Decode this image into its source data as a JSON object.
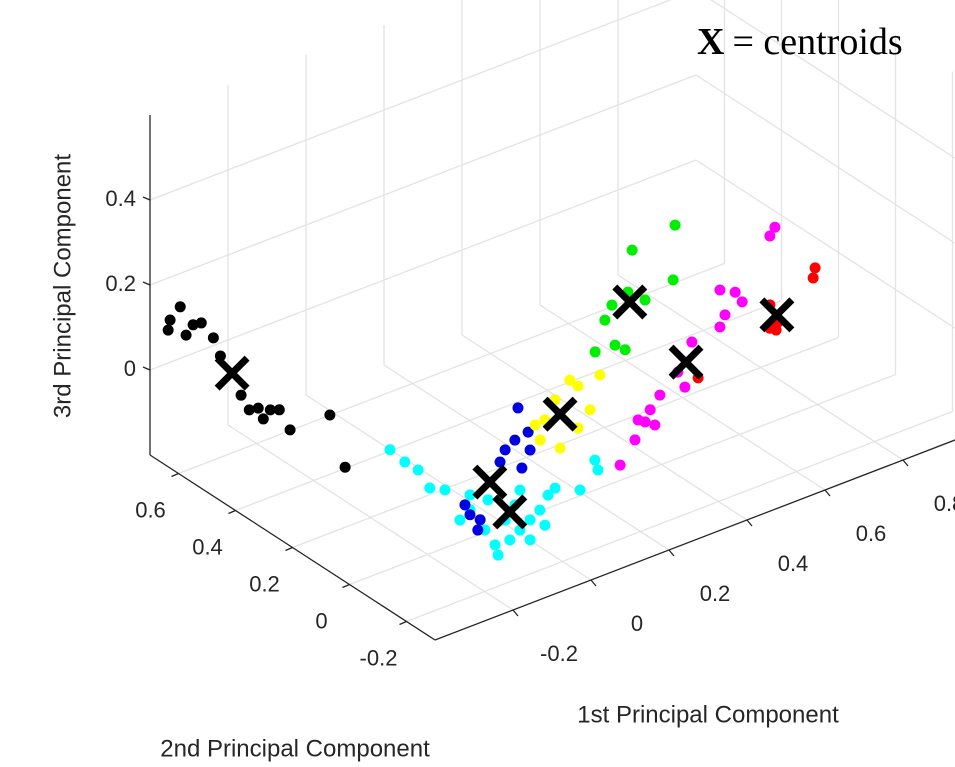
{
  "chart_data": {
    "type": "scatter3d",
    "annotation": {
      "marker": "X",
      "text": "= centroids"
    },
    "xlabel": "1st Principal Component",
    "ylabel": "2nd Principal Component",
    "zlabel": "3rd Principal Component",
    "xlim": [
      -0.4,
      1.0
    ],
    "ylim": [
      -0.3,
      0.7
    ],
    "zlim": [
      -0.2,
      0.6
    ],
    "xticks": [
      -0.2,
      0,
      0.2,
      0.4,
      0.6,
      0.8
    ],
    "yticks": [
      -0.2,
      0,
      0.2,
      0.4,
      0.6
    ],
    "zticks": [
      0,
      0.2,
      0.4
    ],
    "grid": true,
    "series": [
      {
        "color": "#000000",
        "x": [
          -0.385,
          -0.359,
          -0.39,
          -0.344,
          -0.326,
          -0.305,
          -0.274,
          -0.256,
          -0.203,
          -0.182,
          -0.159,
          -0.146,
          -0.128,
          -0.105,
          -0.187,
          -0.085,
          -0.192
        ],
        "y": [
          0.65,
          0.65,
          0.65,
          0.65,
          0.65,
          0.65,
          0.65,
          0.65,
          0.65,
          0.65,
          0.65,
          0.65,
          0.65,
          0.65,
          0.5,
          0.5,
          0.3
        ],
        "z": [
          0.134,
          0.156,
          0.112,
          0.084,
          0.102,
          0.099,
          0.053,
          0.004,
          -0.107,
          -0.149,
          -0.153,
          -0.183,
          -0.168,
          -0.176,
          -0.129,
          -0.13,
          -0.128
        ]
      },
      {
        "color": "#00ffff",
        "x": [
          -0.223,
          -0.185,
          -0.151,
          -0.121,
          -0.082,
          -0.19,
          -0.164,
          -0.126,
          -0.1,
          -0.092,
          -0.062,
          -0.036,
          -0.01,
          0.015,
          0.036,
          0.054,
          0.028,
          -0.074,
          -0.049,
          0.118,
          0.156,
          0.164,
          -0.164,
          -0.118,
          -0.01,
          -0.036
        ],
        "y": [
          0.1,
          0.1,
          0.1,
          0.1,
          0.1,
          -0.1,
          -0.1,
          -0.1,
          -0.1,
          -0.1,
          -0.1,
          -0.1,
          -0.1,
          -0.1,
          -0.1,
          -0.1,
          -0.1,
          -0.1,
          -0.1,
          -0.1,
          -0.1,
          -0.1,
          -0.1,
          -0.1,
          -0.1,
          -0.1
        ],
        "z": [
          0.011,
          -0.031,
          -0.062,
          -0.115,
          -0.133,
          -0.079,
          -0.064,
          -0.125,
          -0.169,
          -0.196,
          -0.171,
          -0.157,
          -0.142,
          -0.128,
          -0.1,
          -0.09,
          -0.168,
          -0.12,
          -0.093,
          -0.117,
          -0.06,
          -0.086,
          -0.029,
          -0.057,
          -0.189,
          -0.063
        ]
      },
      {
        "color": "#0000e0",
        "x": [
          -0.104,
          -0.091,
          -0.071,
          -0.014,
          -0.001,
          0.024,
          0.032,
          0.058,
          0.063,
          0.042,
          -0.065
        ],
        "y": [
          0,
          0,
          0,
          0,
          0,
          0,
          0,
          0,
          0,
          0,
          0
        ],
        "z": [
          -0.117,
          -0.145,
          -0.188,
          -0.048,
          -0.024,
          -0.01,
          0.063,
          -0.003,
          -0.047,
          -0.082,
          -0.166
        ]
      },
      {
        "color": "#ffff00",
        "x": [
          0.238,
          0.259,
          0.315,
          0.2,
          0.174,
          0.162,
          0.213,
          0.259,
          0.29,
          0.149
        ],
        "y": [
          0.1,
          0.1,
          0.1,
          0.1,
          0.1,
          0.1,
          0.1,
          0.1,
          0.1,
          0.1
        ],
        "z": [
          0.012,
          -0.009,
          -0.003,
          -0.021,
          -0.059,
          -0.102,
          -0.139,
          -0.108,
          -0.076,
          -0.062
        ]
      },
      {
        "color": "#00ee00",
        "x": [
          0.654,
          0.544,
          0.649,
          0.474,
          0.492,
          0.533,
          0.5,
          0.526,
          0.449,
          0.577
        ],
        "y": [
          0.3,
          0.3,
          0.3,
          0.3,
          0.3,
          0.3,
          0.3,
          0.3,
          0.3,
          0.3
        ],
        "z": [
          0.143,
          0.123,
          0.016,
          -0.017,
          0.012,
          0.028,
          -0.085,
          -0.105,
          -0.083,
          -0.006
        ]
      },
      {
        "color": "#ff00ff",
        "x": [
          0.824,
          0.837,
          0.696,
          0.735,
          0.753,
          0.709,
          0.696,
          0.624,
          0.588,
          0.542,
          0.371,
          0.358,
          0.383,
          0.34,
          0.332,
          0.294,
          0.46
        ],
        "y": [
          0.2,
          0.2,
          0.2,
          0.2,
          0.2,
          0.2,
          0.2,
          0.2,
          0.2,
          0.2,
          0,
          0,
          0,
          0,
          0,
          0,
          0
        ],
        "z": [
          0.101,
          0.117,
          0.019,
          0,
          -0.029,
          -0.044,
          -0.068,
          -0.078,
          -0.136,
          -0.174,
          -0.061,
          -0.085,
          -0.101,
          -0.074,
          -0.118,
          -0.164,
          -0.039
        ]
      },
      {
        "color": "#ff0000",
        "x": [
          0.94,
          0.935,
          0.824,
          0.845,
          0.824,
          0.84,
          0.64
        ],
        "y": [
          0.2,
          0.2,
          0.2,
          0.2,
          0.2,
          0.2,
          0.2
        ],
        "z": [
          -0.015,
          -0.037,
          -0.061,
          -0.109,
          -0.116,
          -0.126,
          -0.168
        ]
      },
      {
        "color": "#000000",
        "marker": "x",
        "x": [
          -0.226,
          -0.062,
          -0.04,
          0.213,
          0.538,
          0.609,
          0.842
        ],
        "y": [
          0.65,
          -0.1,
          0,
          0.1,
          0.3,
          0.2,
          0.2
        ],
        "z": [
          -0.047,
          -0.105,
          -0.086,
          -0.059,
          0.003,
          -0.12,
          -0.091
        ]
      }
    ]
  }
}
